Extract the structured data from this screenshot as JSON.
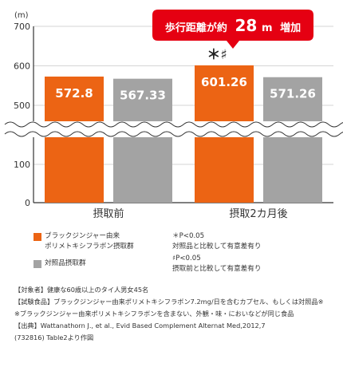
{
  "chart_data": {
    "type": "bar",
    "unit": "(m)",
    "categories": [
      "摂取前",
      "摂取2カ月後"
    ],
    "series": [
      {
        "name": "ブラックジンジャー由来ポリメトキシフラボン摂取群",
        "color": "#ec6414",
        "values": [
          572.8,
          601.26
        ],
        "labels": [
          "572.8",
          "601.26"
        ]
      },
      {
        "name": "対照品摂取群",
        "color": "#a3a3a3",
        "values": [
          567.33,
          571.26
        ],
        "labels": [
          "567.33",
          "571.26"
        ]
      }
    ],
    "yticks": [
      0,
      100,
      500,
      600,
      700
    ],
    "ylim": [
      0,
      700
    ],
    "axis_break": [
      100,
      500
    ],
    "grid": true,
    "annotation": "＊♯",
    "callout": {
      "prefix": "歩行距離が約",
      "value": "28",
      "unit": "m",
      "suffix": "増加"
    },
    "callout_color": "#e50012"
  },
  "legend": [
    {
      "line1": "ブラックジンジャー由来",
      "line2": "ポリメトキシフラボン摂取群",
      "color": "#ec6414"
    },
    {
      "line1": "対照品摂取群",
      "line2": "",
      "color": "#a3a3a3"
    }
  ],
  "significance": [
    {
      "line1": "＊P<0.05",
      "line2": "対照品と比較して有意差有り"
    },
    {
      "line1": "♯P<0.05",
      "line2": "摂取前と比較して有意差有り"
    }
  ],
  "notes": {
    "subjects": "【対象者】健康な60歳以上のタイ人男女45名",
    "food": "【試験食品】ブラックジンジャー由来ポリメトキシフラボン7.2mg/日を含むカプセル、もしくは対照品※",
    "footnote": "※ブラックジンジャー由来ポリメトキシフラボンを含まない、外観・味・においなどが同じ食品",
    "source_line1": "【出典】Wattanathorn J., et al., Evid Based Complement Alternat Med,2012,7",
    "source_line2": "(732816) Table2より作図"
  }
}
